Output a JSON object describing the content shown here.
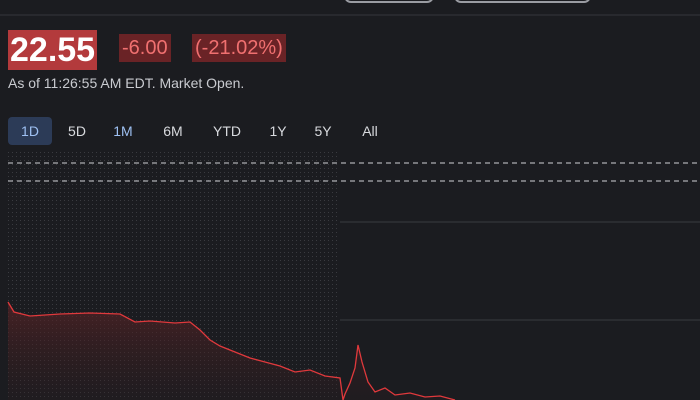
{
  "quote": {
    "price": "22.55",
    "change": "-6.00",
    "change_pct": "(-21.02%)",
    "as_of": "As of 11:26:55 AM EDT. Market Open."
  },
  "ranges": [
    "1D",
    "5D",
    "1M",
    "6M",
    "YTD",
    "1Y",
    "5Y",
    "All"
  ]
}
